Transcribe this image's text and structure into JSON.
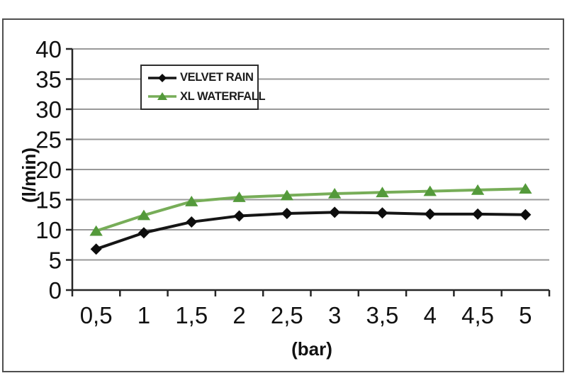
{
  "chart_data": {
    "type": "line",
    "title": "",
    "xlabel": "(bar)",
    "ylabel": "(l/min)",
    "x": [
      0.5,
      1,
      1.5,
      2,
      2.5,
      3,
      3.5,
      4,
      4.5,
      5
    ],
    "x_tick_labels": [
      "0,5",
      "1",
      "1,5",
      "2",
      "2,5",
      "3",
      "3,5",
      "4",
      "4,5",
      "5"
    ],
    "y_tick_labels": [
      "40",
      "35",
      "30",
      "25",
      "20",
      "15",
      "10",
      "5",
      "0"
    ],
    "ylim": [
      0,
      40
    ],
    "y_step": 5,
    "grid": "horizontal",
    "legend_position": "top-center-inside",
    "series": [
      {
        "name": "VELVET RAIN",
        "marker": "diamond",
        "color": "#151515",
        "marker_color": "#0d0d0d",
        "values": [
          6.8,
          9.5,
          11.3,
          12.3,
          12.7,
          12.9,
          12.8,
          12.6,
          12.6,
          12.5
        ]
      },
      {
        "name": "XL WATERFALL",
        "marker": "triangle",
        "color": "#77ad58",
        "marker_color": "#549a3b",
        "values": [
          9.8,
          12.4,
          14.7,
          15.4,
          15.7,
          16.0,
          16.2,
          16.4,
          16.6,
          16.8
        ]
      }
    ],
    "colors": {
      "gridline": "#999999",
      "axis": "#262626",
      "frame_border": "#4f4f4f",
      "background": "#ffffff",
      "text": "#111111"
    }
  }
}
